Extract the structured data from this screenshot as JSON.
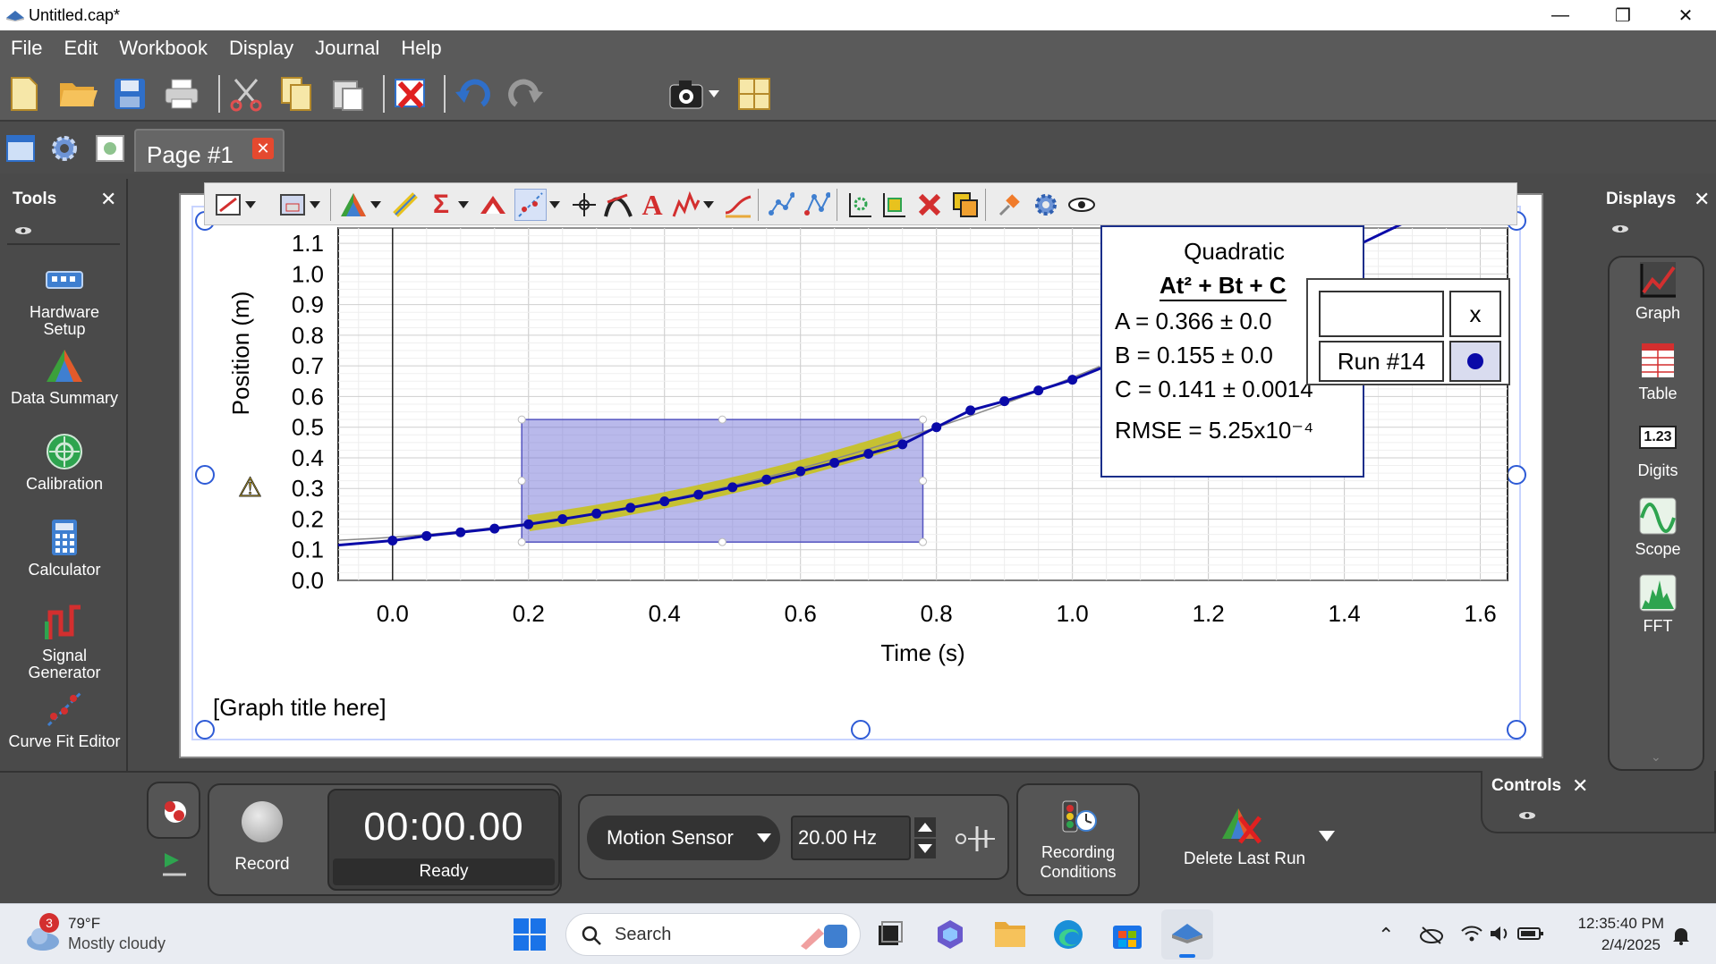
{
  "window": {
    "title": "Untitled.cap*",
    "minimize": "—",
    "maximize": "❐",
    "close": "✕"
  },
  "menu": [
    "File",
    "Edit",
    "Workbook",
    "Display",
    "Journal",
    "Help"
  ],
  "page_tab": {
    "label": "Page #1",
    "close": "✕"
  },
  "tools_panel": {
    "title": "Tools",
    "close": "✕",
    "items": [
      {
        "label": "Hardware Setup",
        "icon": "hardware-setup-icon"
      },
      {
        "label": "Data Summary",
        "icon": "data-summary-icon"
      },
      {
        "label": "Calibration",
        "icon": "calibration-icon"
      },
      {
        "label": "Calculator",
        "icon": "calculator-icon"
      },
      {
        "label": "Signal Generator",
        "icon": "signal-generator-icon"
      },
      {
        "label": "Curve Fit Editor",
        "icon": "curve-fit-editor-icon"
      }
    ]
  },
  "displays_panel": {
    "title": "Displays",
    "close": "✕",
    "items": [
      {
        "label": "Graph",
        "icon": "graph-icon"
      },
      {
        "label": "Table",
        "icon": "table-icon"
      },
      {
        "label": "Digits",
        "icon": "digits-icon",
        "badge": "1.23"
      },
      {
        "label": "Scope",
        "icon": "scope-icon"
      },
      {
        "label": "FFT",
        "icon": "fft-icon"
      }
    ]
  },
  "graph": {
    "title_placeholder": "[Graph title here]",
    "xlabel": "Time (s)",
    "ylabel": "Position (m)",
    "warning": "⚠"
  },
  "chart_data": {
    "type": "scatter",
    "xlabel": "Time (s)",
    "ylabel": "Position (m)",
    "xlim": [
      -0.08,
      1.64
    ],
    "ylim": [
      0.0,
      1.15
    ],
    "xticks": [
      "0.0",
      "0.2",
      "0.4",
      "0.6",
      "0.8",
      "1.0",
      "1.2",
      "1.4",
      "1.6"
    ],
    "yticks": [
      "0.0",
      "0.1",
      "0.2",
      "0.3",
      "0.4",
      "0.5",
      "0.6",
      "0.7",
      "0.8",
      "0.9",
      "1.0",
      "1.1"
    ],
    "grid": true,
    "series": [
      {
        "name": "Run #14",
        "color": "#0a0aa8",
        "x": [
          0.0,
          0.05,
          0.1,
          0.15,
          0.2,
          0.25,
          0.3,
          0.35,
          0.4,
          0.45,
          0.5,
          0.55,
          0.6,
          0.65,
          0.7,
          0.75,
          0.8,
          0.85,
          0.9,
          0.95,
          1.0,
          1.05
        ],
        "y": [
          0.13,
          0.145,
          0.157,
          0.169,
          0.183,
          0.2,
          0.218,
          0.237,
          0.258,
          0.28,
          0.304,
          0.329,
          0.356,
          0.384,
          0.413,
          0.444,
          0.5,
          0.555,
          0.585,
          0.62,
          0.655,
          0.7
        ]
      }
    ],
    "fit": {
      "name": "Quadratic",
      "equation": "At² + Bt + C",
      "A": "A = 0.366 ± 0.0",
      "B": "B = 0.155 ± 0.0",
      "C": "C = 0.141 ± 0.0014",
      "RMSE": "RMSE = 5.25x10⁻⁴",
      "coef": [
        0.366,
        0.155,
        0.141
      ],
      "range": [
        0.2,
        0.75
      ]
    },
    "selection": {
      "x": [
        0.19,
        0.78
      ],
      "y": [
        0.125,
        0.525
      ]
    }
  },
  "run_popup": {
    "field": "",
    "x_button": "x",
    "run": "Run #14"
  },
  "controls": {
    "title": "Controls",
    "close": "✕",
    "record_label": "Record",
    "timer": "00:00.00",
    "status": "Ready",
    "sensor": "Motion Sensor",
    "rate": "20.00 Hz",
    "recording_conditions": "Recording Conditions",
    "delete_last_run": "Delete Last Run"
  },
  "taskbar": {
    "weather_temp": "79°F",
    "weather_desc": "Mostly cloudy",
    "weather_badge": "3",
    "search_placeholder": "Search",
    "time": "12:35:40 PM",
    "date": "2/4/2025"
  }
}
